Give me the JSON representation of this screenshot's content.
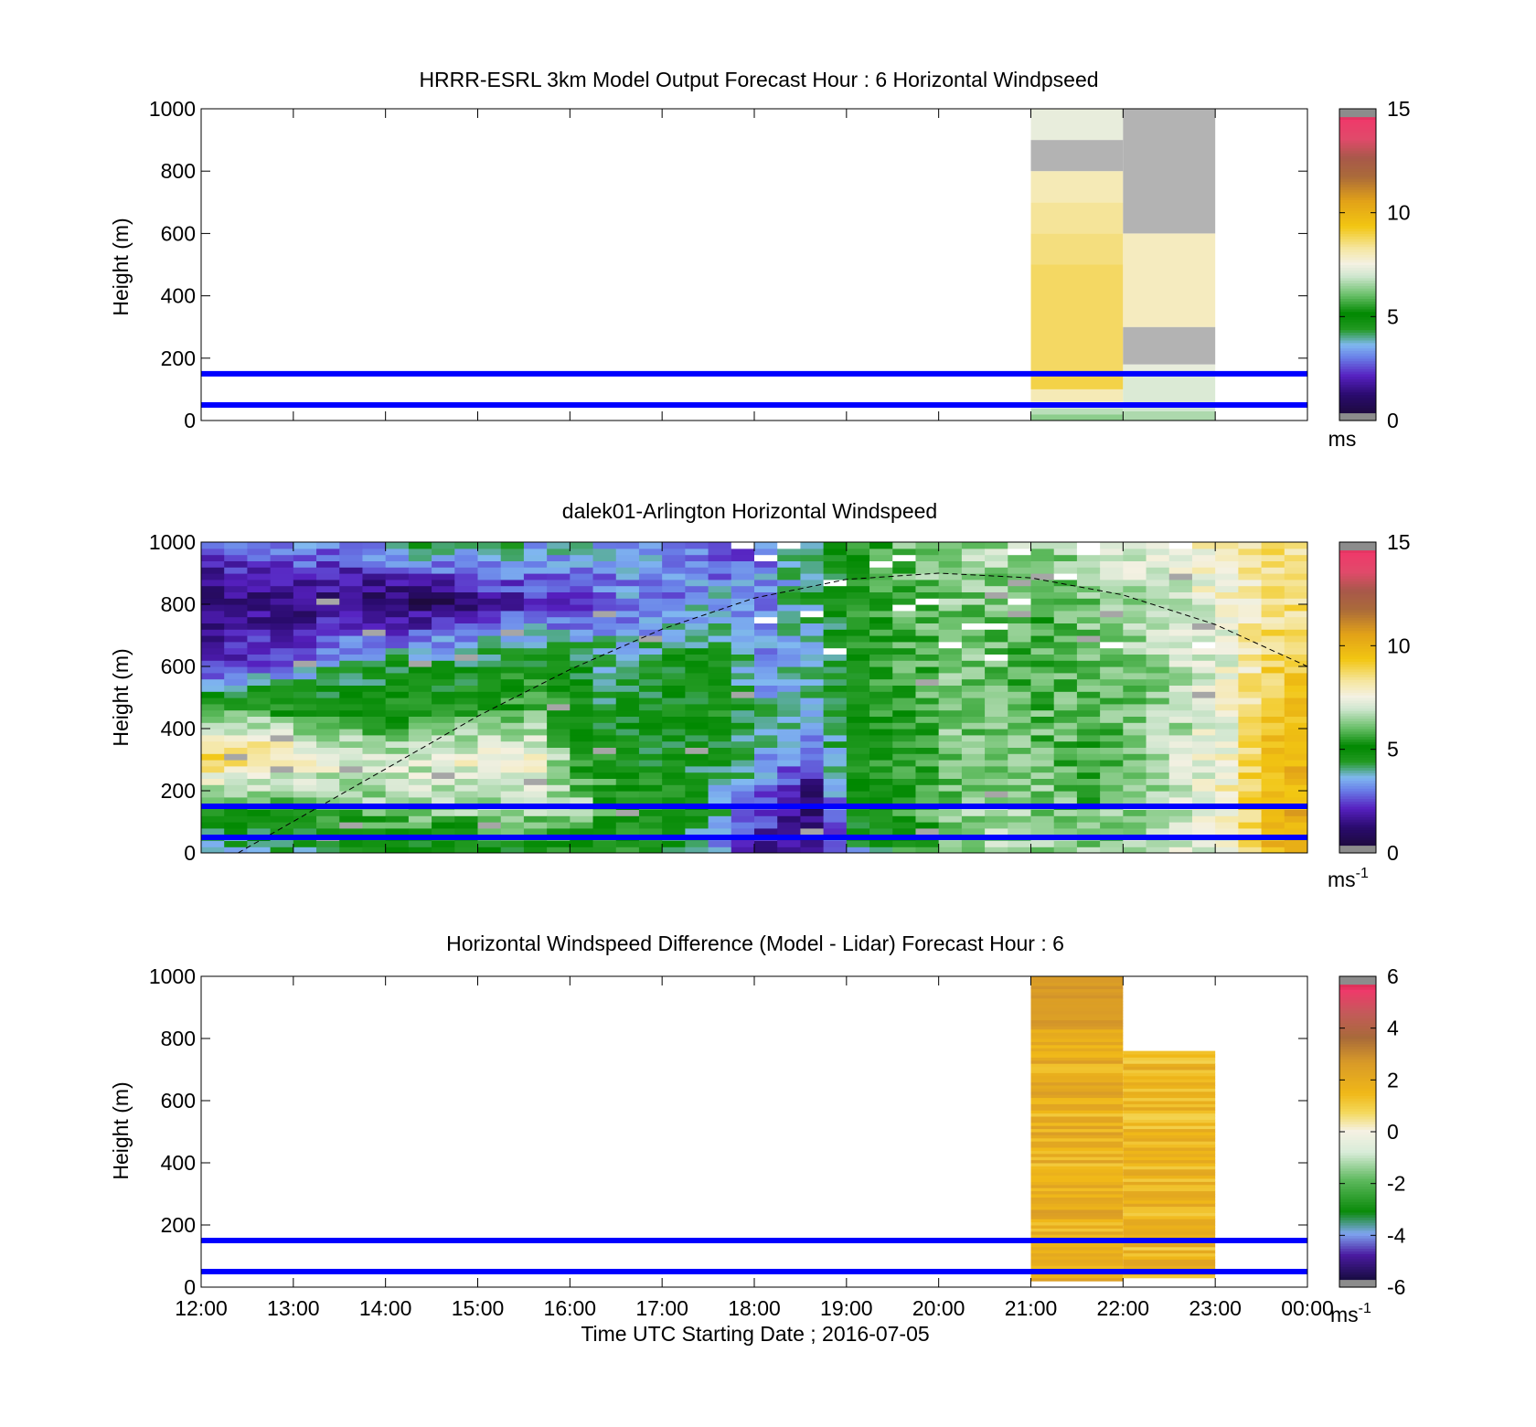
{
  "chart_data": [
    {
      "type": "heatmap",
      "title": "HRRR-ESRL 3km Model Output   Forecast Hour : 6 Horizontal Windpseed",
      "ylabel": "Height (m)",
      "ylim": [
        0,
        1000
      ],
      "yticks": [
        "0",
        "200",
        "400",
        "600",
        "800",
        "1000"
      ],
      "x_range_hours": [
        12,
        24
      ],
      "colorbar": {
        "min": 0,
        "max": 15,
        "ticks": [
          "0",
          "5",
          "10",
          "15"
        ],
        "unit": "ms",
        "unit_sup": "",
        "palette": "speed"
      },
      "reference_lines_m": [
        50,
        150
      ],
      "columns": [
        {
          "x_start": 21,
          "x_end": 22,
          "cells": [
            {
              "y0": 0,
              "y1": 20,
              "value": 6.3
            },
            {
              "y0": 20,
              "y1": 40,
              "value": 6.7
            },
            {
              "y0": 40,
              "y1": 60,
              "value": 7.5
            },
            {
              "y0": 60,
              "y1": 100,
              "value": 8.0
            },
            {
              "y0": 100,
              "y1": 160,
              "value": 8.9
            },
            {
              "y0": 160,
              "y1": 500,
              "value": 8.7
            },
            {
              "y0": 500,
              "y1": 600,
              "value": 8.5
            },
            {
              "y0": 600,
              "y1": 700,
              "value": 8.3
            },
            {
              "y0": 700,
              "y1": 800,
              "value": 8.0
            },
            {
              "y0": 800,
              "y1": 900,
              "value": null
            },
            {
              "y0": 900,
              "y1": 1000,
              "value": 7.3
            }
          ]
        },
        {
          "x_start": 22,
          "x_end": 23,
          "cells": [
            {
              "y0": 0,
              "y1": 30,
              "value": 6.6
            },
            {
              "y0": 30,
              "y1": 60,
              "value": 6.9
            },
            {
              "y0": 60,
              "y1": 150,
              "value": 7.1
            },
            {
              "y0": 150,
              "y1": 180,
              "value": 7.3
            },
            {
              "y0": 180,
              "y1": 300,
              "value": null
            },
            {
              "y0": 300,
              "y1": 600,
              "value": 7.9
            },
            {
              "y0": 600,
              "y1": 1000,
              "value": null
            }
          ]
        }
      ]
    },
    {
      "type": "heatmap",
      "title": "dalek01-Arlington  Horizontal Windspeed",
      "ylabel": "Height (m)",
      "ylim": [
        0,
        1000
      ],
      "yticks": [
        "0",
        "200",
        "400",
        "600",
        "800",
        "1000"
      ],
      "x_range_hours": [
        12,
        24
      ],
      "colorbar": {
        "min": 0,
        "max": 15,
        "ticks": [
          "0",
          "5",
          "10",
          "15"
        ],
        "unit": "ms",
        "unit_sup": "-1",
        "palette": "speed"
      },
      "reference_lines_m": [
        50,
        150
      ],
      "grid": {
        "x_step_hours": 0.25,
        "y_step_m": 20
      },
      "profile_by_hour": [
        [
          12.0,
          3.8,
          5.6,
          9.0,
          6.0,
          2.0,
          1.0,
          3.0
        ],
        [
          12.5,
          4.0,
          5.6,
          8.8,
          5.8,
          2.6,
          1.2,
          3.2
        ],
        [
          13.0,
          4.2,
          5.8,
          7.8,
          5.4,
          3.2,
          1.2,
          3.4
        ],
        [
          13.5,
          4.4,
          6.2,
          7.2,
          5.0,
          4.0,
          1.2,
          3.0
        ],
        [
          14.0,
          4.6,
          6.4,
          7.0,
          5.2,
          4.2,
          0.8,
          4.2
        ],
        [
          14.5,
          4.6,
          6.6,
          7.2,
          5.0,
          4.4,
          0.8,
          4.8
        ],
        [
          15.0,
          4.6,
          6.6,
          7.8,
          5.4,
          4.6,
          1.6,
          4.4
        ],
        [
          15.5,
          4.8,
          6.8,
          7.6,
          6.0,
          4.8,
          2.2,
          3.8
        ],
        [
          16.0,
          5.0,
          6.4,
          5.2,
          4.6,
          4.6,
          2.4,
          3.8
        ],
        [
          16.5,
          5.0,
          5.4,
          4.8,
          4.6,
          3.6,
          3.0,
          3.6
        ],
        [
          17.0,
          4.6,
          5.0,
          4.6,
          4.8,
          4.6,
          3.0,
          3.4
        ],
        [
          17.5,
          3.2,
          3.8,
          4.4,
          5.0,
          4.6,
          3.6,
          2.0
        ],
        [
          18.0,
          1.8,
          2.6,
          3.6,
          3.8,
          3.4,
          3.2,
          3.0
        ],
        [
          18.5,
          1.4,
          1.2,
          2.6,
          3.8,
          3.6,
          4.2,
          4.0
        ],
        [
          19.0,
          3.6,
          4.8,
          5.0,
          5.0,
          5.0,
          5.2,
          5.2
        ],
        [
          19.5,
          5.2,
          5.4,
          5.2,
          5.4,
          5.6,
          5.8,
          6.0
        ],
        [
          20.0,
          6.2,
          6.0,
          6.0,
          6.2,
          6.0,
          6.2,
          6.4
        ],
        [
          20.5,
          6.6,
          6.4,
          6.2,
          6.0,
          6.0,
          6.2,
          6.6
        ],
        [
          21.0,
          6.4,
          6.2,
          6.0,
          5.8,
          5.6,
          5.8,
          6.4
        ],
        [
          21.5,
          6.2,
          5.8,
          5.6,
          5.8,
          6.0,
          6.2,
          6.8
        ],
        [
          22.0,
          6.8,
          6.4,
          6.2,
          6.0,
          6.2,
          6.6,
          7.2
        ],
        [
          22.5,
          7.0,
          6.8,
          6.8,
          6.6,
          6.8,
          7.0,
          7.6
        ],
        [
          23.0,
          7.6,
          8.0,
          7.6,
          7.4,
          7.4,
          7.6,
          8.2
        ],
        [
          23.5,
          9.6,
          9.8,
          9.6,
          9.4,
          8.8,
          8.4,
          8.4
        ],
        [
          24.0,
          10.6,
          10.2,
          9.8,
          9.4,
          9.0,
          8.6,
          8.4
        ]
      ],
      "profile_heights_m": [
        0,
        150,
        300,
        450,
        600,
        800,
        1000
      ],
      "dashed_curve": [
        {
          "x": 12.4,
          "y": 0
        },
        {
          "x": 14.0,
          "y": 270
        },
        {
          "x": 15.0,
          "y": 440
        },
        {
          "x": 16.0,
          "y": 590
        },
        {
          "x": 17.0,
          "y": 720
        },
        {
          "x": 18.0,
          "y": 820
        },
        {
          "x": 19.0,
          "y": 880
        },
        {
          "x": 20.0,
          "y": 900
        },
        {
          "x": 21.0,
          "y": 885
        },
        {
          "x": 22.0,
          "y": 830
        },
        {
          "x": 23.0,
          "y": 735
        },
        {
          "x": 24.0,
          "y": 600
        }
      ]
    },
    {
      "type": "heatmap",
      "title": "Horizontal Windspeed Difference (Model - Lidar) Forecast Hour : 6",
      "xlabel": "Time UTC  Starting Date ; 2016-07-05",
      "ylabel": "Height (m)",
      "ylim": [
        0,
        1000
      ],
      "yticks": [
        "0",
        "200",
        "400",
        "600",
        "800",
        "1000"
      ],
      "xticks": [
        "12:00",
        "13:00",
        "14:00",
        "15:00",
        "16:00",
        "17:00",
        "18:00",
        "19:00",
        "20:00",
        "21:00",
        "22:00",
        "23:00",
        "00:00"
      ],
      "x_range_hours": [
        12,
        24
      ],
      "colorbar": {
        "min": -6,
        "max": 6,
        "ticks": [
          "-6",
          "-4",
          "-2",
          "0",
          "2",
          "4",
          "6"
        ],
        "unit": "ms",
        "unit_sup": "-1",
        "palette": "diff"
      },
      "reference_lines_m": [
        50,
        150
      ],
      "columns": [
        {
          "x_start": 21,
          "x_end": 22,
          "y_min": 20,
          "y_max": 1000,
          "value_range": [
            1.0,
            2.6
          ]
        },
        {
          "x_start": 22,
          "x_end": 23,
          "y_min": 30,
          "y_max": 760,
          "value_range": [
            0.8,
            2.2
          ]
        }
      ]
    }
  ]
}
